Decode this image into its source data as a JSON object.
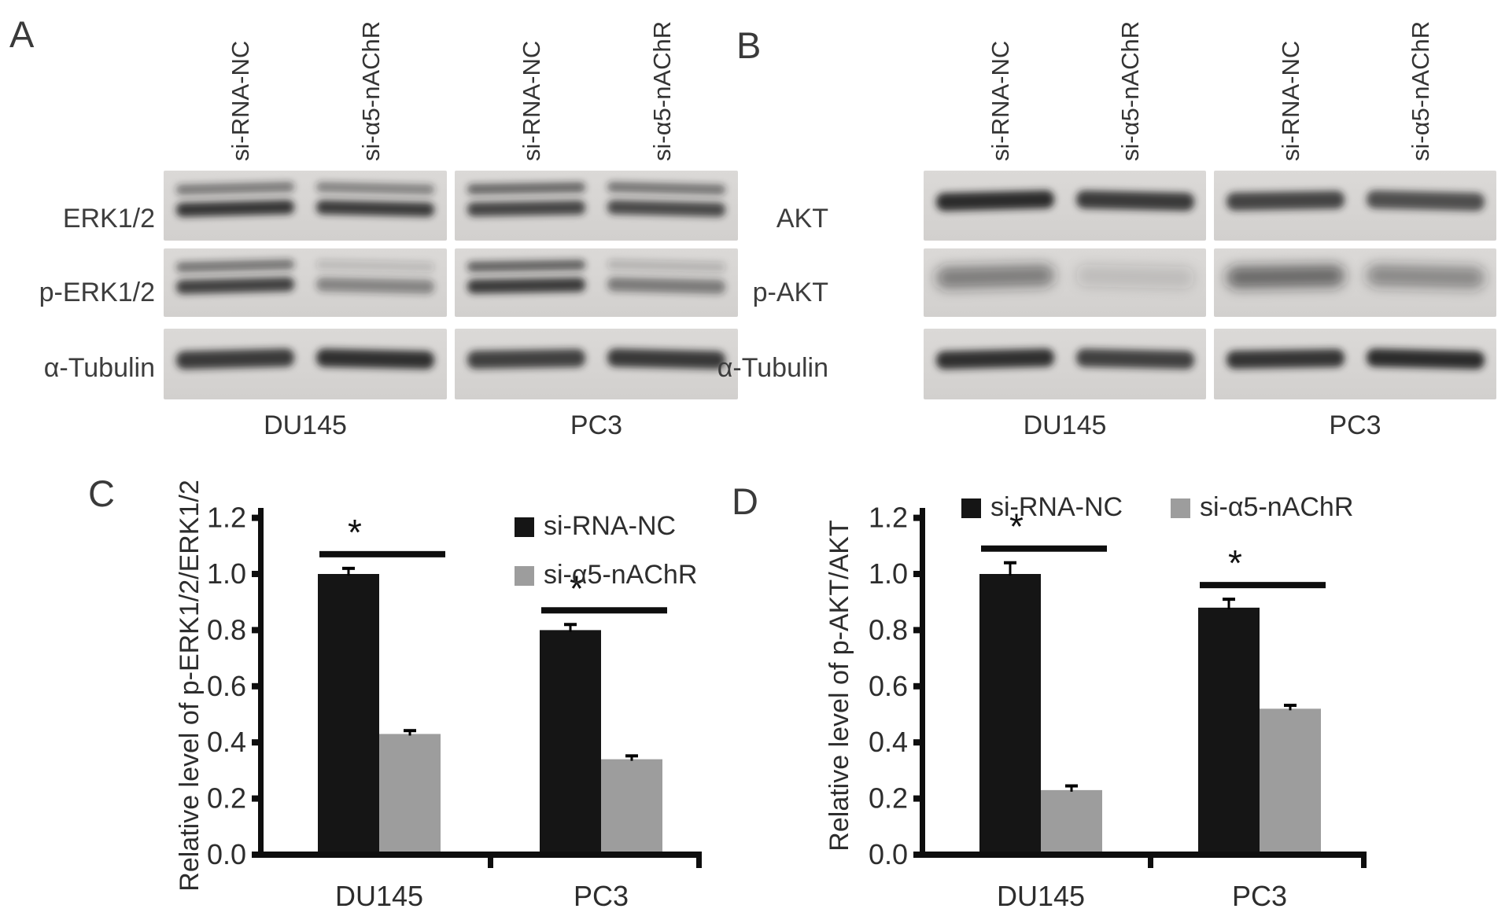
{
  "panels": {
    "A": {
      "letter": "A",
      "lane_labels": [
        "si-RNA-NC",
        "si-α5-nAChR",
        "si-RNA-NC",
        "si-α5-nAChR"
      ],
      "group_labels": [
        "DU145",
        "PC3"
      ],
      "rows": [
        {
          "label": "ERK1/2",
          "bands": "doublet",
          "lanes": [
            [
              0.52,
              0.88
            ],
            [
              0.48,
              0.85
            ],
            [
              0.62,
              0.8
            ],
            [
              0.55,
              0.78
            ]
          ]
        },
        {
          "label": "p-ERK1/2",
          "bands": "doublet",
          "lanes": [
            [
              0.55,
              0.82
            ],
            [
              0.16,
              0.45
            ],
            [
              0.65,
              0.85
            ],
            [
              0.2,
              0.5
            ]
          ]
        },
        {
          "label": "α-Tubulin",
          "bands": "single",
          "lanes": [
            [
              0.85
            ],
            [
              0.9
            ],
            [
              0.82
            ],
            [
              0.86
            ]
          ]
        }
      ]
    },
    "B": {
      "letter": "B",
      "lane_labels": [
        "si-RNA-NC",
        "si-α5-nAChR",
        "si-RNA-NC",
        "si-α5-nAChR"
      ],
      "group_labels": [
        "DU145",
        "PC3"
      ],
      "rows": [
        {
          "label": "AKT",
          "bands": "single",
          "lanes": [
            [
              0.92
            ],
            [
              0.85
            ],
            [
              0.8
            ],
            [
              0.75
            ]
          ]
        },
        {
          "label": "p-AKT",
          "bands": "fuzzy",
          "lanes": [
            [
              0.5
            ],
            [
              0.15
            ],
            [
              0.6
            ],
            [
              0.44
            ]
          ]
        },
        {
          "label": "α-Tubulin",
          "bands": "single",
          "lanes": [
            [
              0.9
            ],
            [
              0.82
            ],
            [
              0.88
            ],
            [
              0.92
            ]
          ]
        }
      ]
    }
  },
  "chart_data": [
    {
      "panel": "C",
      "type": "bar",
      "ylabel": "Relative level of p-ERK1/2/ERK1/2",
      "yticks": [
        "0.0",
        "0.2",
        "0.4",
        "0.6",
        "0.8",
        "1.0",
        "1.2"
      ],
      "ylim": [
        0,
        1.2
      ],
      "categories": [
        "DU145",
        "PC3"
      ],
      "series": [
        {
          "name": "si-RNA-NC",
          "color": "#151515",
          "values": [
            1.0,
            0.8
          ],
          "errors": [
            0.02,
            0.02
          ]
        },
        {
          "name": "si-α5-nAChR",
          "color": "#9d9d9d",
          "values": [
            0.43,
            0.34
          ],
          "errors": [
            0.012,
            0.012
          ]
        }
      ],
      "significance_symbol": "*",
      "significant_groups": [
        0,
        1
      ],
      "legend_position": "upper right, vertical",
      "grid": false
    },
    {
      "panel": "D",
      "type": "bar",
      "ylabel": "Relative level of p-AKT/AKT",
      "yticks": [
        "0.0",
        "0.2",
        "0.4",
        "0.6",
        "0.8",
        "1.0",
        "1.2"
      ],
      "ylim": [
        0,
        1.2
      ],
      "categories": [
        "DU145",
        "PC3"
      ],
      "series": [
        {
          "name": "si-RNA-NC",
          "color": "#151515",
          "values": [
            1.0,
            0.88
          ],
          "errors": [
            0.04,
            0.03
          ]
        },
        {
          "name": "si-α5-nAChR",
          "color": "#9d9d9d",
          "values": [
            0.23,
            0.52
          ],
          "errors": [
            0.015,
            0.012
          ]
        }
      ],
      "significance_symbol": "*",
      "significant_groups": [
        0,
        1
      ],
      "legend_position": "top, horizontal",
      "grid": false
    }
  ],
  "colors": {
    "blot_background": "#d8d6d4",
    "blot_band": "#202020",
    "axis": "#0e0e0e",
    "text": "#2d2d2d"
  }
}
